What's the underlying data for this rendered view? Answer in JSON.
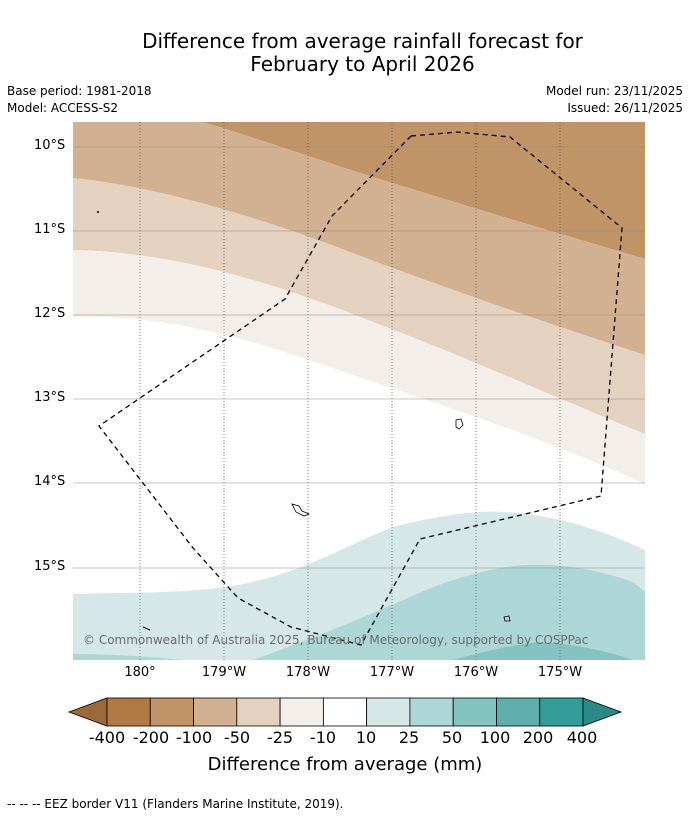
{
  "title_line1": "Difference from average rainfall forecast for",
  "title_line2": "February to April 2026",
  "base_period": "Base period: 1981-2018",
  "model": "Model: ACCESS-S2",
  "model_run": "Model run: 23/11/2025",
  "issued": "Issued: 26/11/2025",
  "lat_labels": [
    "10°S",
    "11°S",
    "12°S",
    "13°S",
    "14°S",
    "15°S"
  ],
  "lon_labels": [
    "180°",
    "179°W",
    "178°W",
    "177°W",
    "176°W",
    "175°W"
  ],
  "copyright": "© Commonwealth of Australia 2025, Bureau of Meteorology, supported by COSPPac",
  "colorbar": {
    "labels": [
      "-400",
      "-200",
      "-100",
      "-50",
      "-25",
      "-10",
      "10",
      "25",
      "50",
      "100",
      "200",
      "400"
    ],
    "colors": [
      "#9c6a3a",
      "#b07a44",
      "#c19467",
      "#d2b192",
      "#e4d1c0",
      "#f3eee9",
      "#ffffff",
      "#d5e8e7",
      "#add6d6",
      "#85c2c2",
      "#5eaeae",
      "#339d9a",
      "#2a8a87"
    ],
    "title": "Difference from average (mm)"
  },
  "footnote": "--  --  -- EEZ border V11 (Flanders Marine Institute, 2019)."
}
